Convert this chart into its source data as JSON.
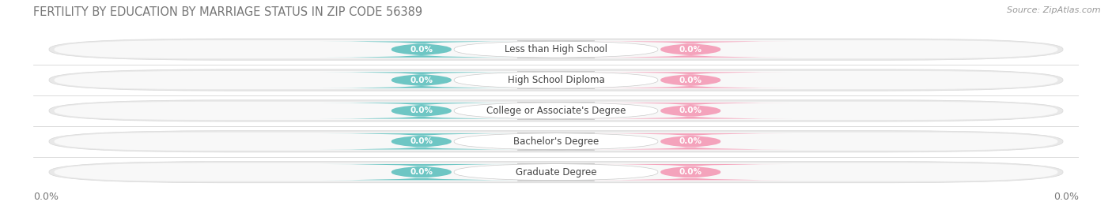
{
  "title": "FERTILITY BY EDUCATION BY MARRIAGE STATUS IN ZIP CODE 56389",
  "source": "Source: ZipAtlas.com",
  "categories": [
    "Less than High School",
    "High School Diploma",
    "College or Associate's Degree",
    "Bachelor's Degree",
    "Graduate Degree"
  ],
  "married_values": [
    "0.0%",
    "0.0%",
    "0.0%",
    "0.0%",
    "0.0%"
  ],
  "unmarried_values": [
    "0.0%",
    "0.0%",
    "0.0%",
    "0.0%",
    "0.0%"
  ],
  "married_color": "#6ec6c4",
  "unmarried_color": "#f4a3bc",
  "bar_bg_color": "#e8e8e8",
  "row_sep_color": "#d0d0d0",
  "white_label_bg": "#ffffff",
  "background_color": "#ffffff",
  "title_fontsize": 10.5,
  "source_fontsize": 8,
  "label_fontsize": 8.5,
  "value_fontsize": 7.5,
  "tick_fontsize": 9,
  "legend_fontsize": 9,
  "left_tick_label": "0.0%",
  "right_tick_label": "0.0%"
}
